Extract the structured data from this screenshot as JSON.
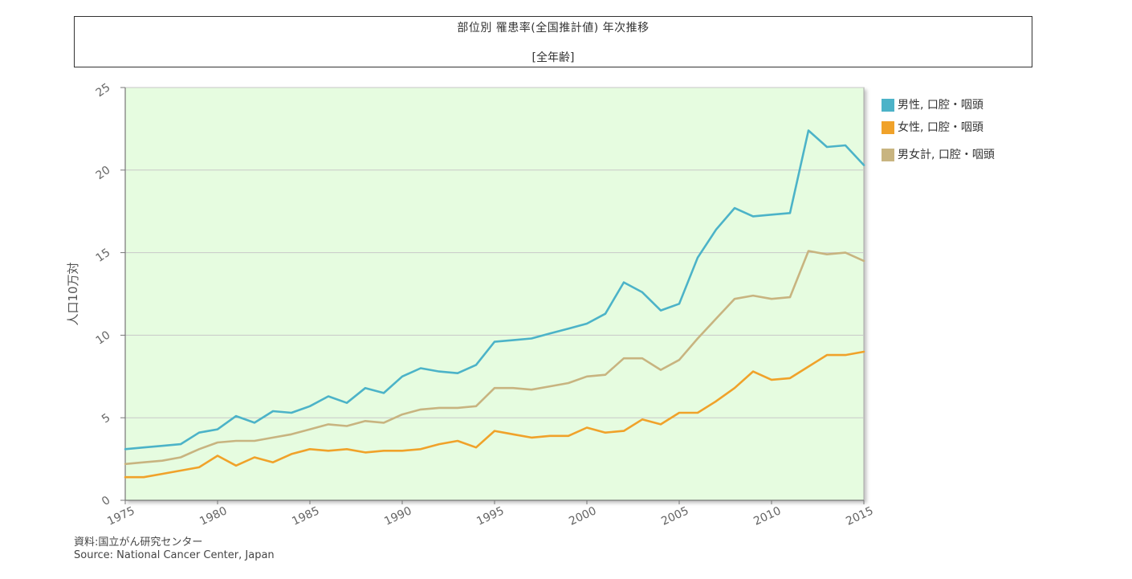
{
  "header": {
    "title": "部位別 罹患率(全国推計値) 年次推移",
    "subtitle": "[全年齢]"
  },
  "source": {
    "line1": "資料:国立がん研究センター",
    "line2": "Source: National Cancer Center, Japan"
  },
  "colors": {
    "plot_bg": "#e6fce0",
    "grid": "#c8c8c8",
    "male": "#4cb3c8",
    "female": "#f0a22a",
    "total": "#c8b480"
  },
  "chart_data": {
    "type": "line",
    "title": "部位別 罹患率(全国推計値) 年次推移",
    "subtitle": "[全年齢]",
    "xlabel": "",
    "ylabel": "人口10万対",
    "xlim": [
      1975,
      2015
    ],
    "ylim": [
      0,
      25
    ],
    "y_ticks": [
      0,
      5,
      10,
      15,
      20,
      25
    ],
    "x_ticks": [
      1975,
      1980,
      1985,
      1990,
      1995,
      2000,
      2005,
      2010,
      2015
    ],
    "x_tick_labels": [
      "1975",
      "1980",
      "1985",
      "1990",
      "1995",
      "2000",
      "2005",
      "2010",
      "2015"
    ],
    "y_tick_labels": [
      "0",
      "5",
      "10",
      "15",
      "20",
      "25"
    ],
    "grid": true,
    "legend_position": "right",
    "x": [
      1975,
      1976,
      1977,
      1978,
      1979,
      1980,
      1981,
      1982,
      1983,
      1984,
      1985,
      1986,
      1987,
      1988,
      1989,
      1990,
      1991,
      1992,
      1993,
      1994,
      1995,
      1996,
      1997,
      1998,
      1999,
      2000,
      2001,
      2002,
      2003,
      2004,
      2005,
      2006,
      2007,
      2008,
      2009,
      2010,
      2011,
      2012,
      2013,
      2014,
      2015
    ],
    "series": [
      {
        "name": "男性, 口腔・咽頭",
        "color": "#4cb3c8",
        "values": [
          3.1,
          3.2,
          3.3,
          3.4,
          4.1,
          4.3,
          5.1,
          4.7,
          5.4,
          5.3,
          5.7,
          6.3,
          5.9,
          6.8,
          6.5,
          7.5,
          8.0,
          7.8,
          7.7,
          8.2,
          9.6,
          9.7,
          9.8,
          10.1,
          10.4,
          10.7,
          11.3,
          13.2,
          12.6,
          11.5,
          11.9,
          14.7,
          16.4,
          17.7,
          17.2,
          17.3,
          17.4,
          22.4,
          21.4,
          21.5,
          20.3
        ]
      },
      {
        "name": "女性, 口腔・咽頭",
        "color": "#f0a22a",
        "values": [
          1.4,
          1.4,
          1.6,
          1.8,
          2.0,
          2.7,
          2.1,
          2.6,
          2.3,
          2.8,
          3.1,
          3.0,
          3.1,
          2.9,
          3.0,
          3.0,
          3.1,
          3.4,
          3.6,
          3.2,
          4.2,
          4.0,
          3.8,
          3.9,
          3.9,
          4.4,
          4.1,
          4.2,
          4.9,
          4.6,
          5.3,
          5.3,
          6.0,
          6.8,
          7.8,
          7.3,
          7.4,
          8.1,
          8.8,
          8.8,
          9.0
        ]
      },
      {
        "name": "男女計, 口腔・咽頭",
        "color": "#c8b480",
        "values": [
          2.2,
          2.3,
          2.4,
          2.6,
          3.1,
          3.5,
          3.6,
          3.6,
          3.8,
          4.0,
          4.3,
          4.6,
          4.5,
          4.8,
          4.7,
          5.2,
          5.5,
          5.6,
          5.6,
          5.7,
          6.8,
          6.8,
          6.7,
          6.9,
          7.1,
          7.5,
          7.6,
          8.6,
          8.6,
          7.9,
          8.5,
          9.8,
          11.0,
          12.2,
          12.4,
          12.2,
          12.3,
          15.1,
          14.9,
          15.0,
          14.5
        ]
      }
    ]
  }
}
